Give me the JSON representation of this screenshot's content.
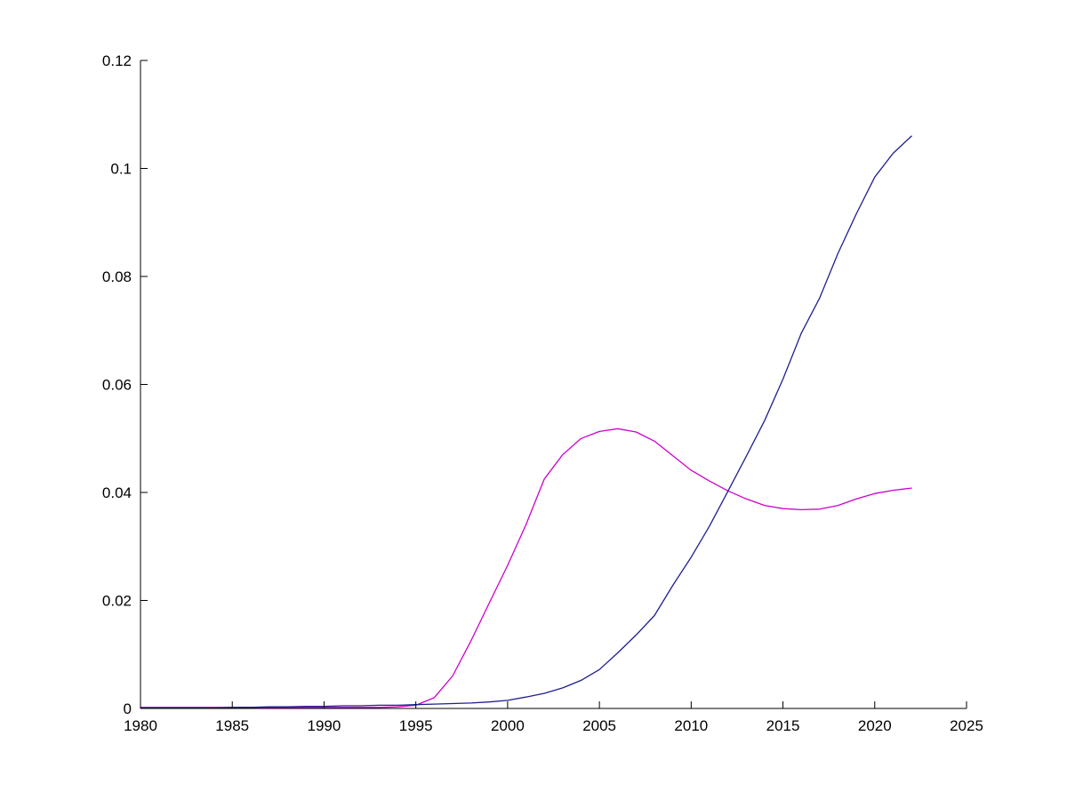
{
  "figure": {
    "background": "#ffffff"
  },
  "chart_data": {
    "type": "line",
    "title": "",
    "xlabel": "",
    "ylabel": "",
    "grid": false,
    "legend": "none",
    "axis_color": "#000000",
    "xlim": [
      1980,
      2025
    ],
    "ylim": [
      0,
      0.12
    ],
    "x_ticks": [
      1980,
      1985,
      1990,
      1995,
      2000,
      2005,
      2010,
      2015,
      2020,
      2025
    ],
    "x_tick_labels": [
      "1980",
      "1985",
      "1990",
      "1995",
      "2000",
      "2005",
      "2010",
      "2015",
      "2020",
      "2025"
    ],
    "y_ticks": [
      0,
      0.02,
      0.04,
      0.06,
      0.08,
      0.1,
      0.12
    ],
    "y_tick_labels": [
      "0",
      "0.02",
      "0.04",
      "0.06",
      "0.08",
      "0.1",
      "0.12"
    ],
    "x": [
      1980,
      1981,
      1982,
      1983,
      1984,
      1985,
      1986,
      1987,
      1988,
      1989,
      1990,
      1991,
      1992,
      1993,
      1994,
      1995,
      1996,
      1997,
      1998,
      1999,
      2000,
      2001,
      2002,
      2003,
      2004,
      2005,
      2006,
      2007,
      2008,
      2009,
      2010,
      2011,
      2012,
      2013,
      2014,
      2015,
      2016,
      2017,
      2018,
      2019,
      2020,
      2021,
      2022
    ],
    "series": [
      {
        "name": "magenta-series",
        "color": "#CC00CC",
        "values": [
          0.0002,
          0.0002,
          0.0002,
          0.0002,
          0.0002,
          0.0002,
          0.0002,
          0.0002,
          0.0002,
          0.0002,
          0.0002,
          0.0002,
          0.0002,
          0.0002,
          0.0003,
          0.0006,
          0.002,
          0.006,
          0.0125,
          0.0195,
          0.0265,
          0.034,
          0.0425,
          0.047,
          0.05,
          0.0513,
          0.0518,
          0.0512,
          0.0495,
          0.0468,
          0.0441,
          0.0421,
          0.0403,
          0.0388,
          0.0376,
          0.037,
          0.0368,
          0.0369,
          0.0376,
          0.0388,
          0.0398,
          0.0404,
          0.0408
        ]
      },
      {
        "name": "blue-series",
        "color": "#1F1F8F",
        "values": [
          0.0001,
          0.0001,
          0.0001,
          0.0001,
          0.0001,
          0.0002,
          0.0002,
          0.0003,
          0.0003,
          0.0004,
          0.0004,
          0.0005,
          0.0005,
          0.0006,
          0.0006,
          0.0007,
          0.0008,
          0.0009,
          0.001,
          0.0012,
          0.0015,
          0.0021,
          0.0028,
          0.0038,
          0.0052,
          0.0072,
          0.0103,
          0.0136,
          0.0172,
          0.0228,
          0.028,
          0.0338,
          0.0402,
          0.0467,
          0.0533,
          0.061,
          0.0695,
          0.076,
          0.0843,
          0.0916,
          0.0984,
          0.1028,
          0.106
        ]
      }
    ]
  }
}
